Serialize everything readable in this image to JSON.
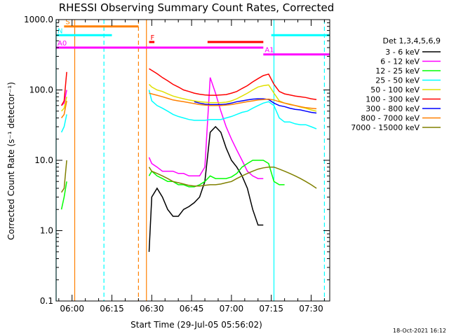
{
  "chart_data": {
    "type": "line",
    "title": "RHESSI Observing Summary Count Rates, Corrected",
    "xlabel": "Start Time (29-Jul-05 05:56:02)",
    "ylabel": "Corrected Count Rate (s⁻¹ detector⁻¹)",
    "yscale": "log",
    "ylim": [
      0.1,
      1000
    ],
    "xlim_min": [
      -6,
      97
    ],
    "x_ticks": [
      {
        "min": 0,
        "label": "06:00"
      },
      {
        "min": 15,
        "label": "06:15"
      },
      {
        "min": 30,
        "label": "06:30"
      },
      {
        "min": 45,
        "label": "06:45"
      },
      {
        "min": 60,
        "label": "07:00"
      },
      {
        "min": 75,
        "label": "07:15"
      },
      {
        "min": 90,
        "label": "07:30"
      }
    ],
    "y_ticks": [
      {
        "v": 0.1,
        "label": "0.1"
      },
      {
        "v": 1,
        "label": "1.0"
      },
      {
        "v": 10,
        "label": "10.0"
      },
      {
        "v": 100,
        "label": "100.0"
      },
      {
        "v": 1000,
        "label": "1000.0"
      }
    ],
    "legend_title": "Det 1,3,4,5,6,9",
    "series": [
      {
        "name": "3 - 6 keV",
        "color": "#000000",
        "points": [
          [
            29,
            0.5
          ],
          [
            30,
            3
          ],
          [
            32,
            4
          ],
          [
            34,
            3
          ],
          [
            36,
            2
          ],
          [
            38,
            1.6
          ],
          [
            40,
            1.6
          ],
          [
            42,
            2
          ],
          [
            44,
            2.2
          ],
          [
            46,
            2.5
          ],
          [
            48,
            3
          ],
          [
            50,
            5
          ],
          [
            52,
            25
          ],
          [
            54,
            30
          ],
          [
            56,
            25
          ],
          [
            58,
            15
          ],
          [
            60,
            10
          ],
          [
            62,
            8
          ],
          [
            64,
            6
          ],
          [
            66,
            4
          ],
          [
            68,
            2
          ],
          [
            70,
            1.2
          ],
          [
            72,
            1.2
          ]
        ]
      },
      {
        "name": "6 - 12 keV",
        "color": "#ff00ff",
        "points": [
          [
            -4,
            60
          ],
          [
            -3,
            65
          ],
          [
            -2,
            100
          ],
          [
            29,
            11
          ],
          [
            30,
            9
          ],
          [
            32,
            8
          ],
          [
            34,
            7
          ],
          [
            36,
            7
          ],
          [
            38,
            7
          ],
          [
            40,
            6.5
          ],
          [
            42,
            6.5
          ],
          [
            44,
            6
          ],
          [
            46,
            6
          ],
          [
            48,
            6
          ],
          [
            50,
            8
          ],
          [
            52,
            150
          ],
          [
            54,
            90
          ],
          [
            56,
            50
          ],
          [
            58,
            30
          ],
          [
            60,
            20
          ],
          [
            62,
            14
          ],
          [
            64,
            10
          ],
          [
            66,
            7
          ],
          [
            68,
            6
          ],
          [
            70,
            5.5
          ],
          [
            72,
            5.5
          ]
        ]
      },
      {
        "name": "12 - 25 keV",
        "color": "#00ff00",
        "points": [
          [
            -4,
            2
          ],
          [
            -3,
            3
          ],
          [
            -2,
            5
          ],
          [
            29,
            6
          ],
          [
            30,
            7
          ],
          [
            32,
            6
          ],
          [
            34,
            5.5
          ],
          [
            36,
            5
          ],
          [
            38,
            5
          ],
          [
            40,
            4.5
          ],
          [
            42,
            4.5
          ],
          [
            44,
            4.2
          ],
          [
            46,
            4.2
          ],
          [
            48,
            4.5
          ],
          [
            50,
            5
          ],
          [
            52,
            6
          ],
          [
            54,
            5.5
          ],
          [
            56,
            5.5
          ],
          [
            58,
            5.5
          ],
          [
            60,
            5.8
          ],
          [
            62,
            6.5
          ],
          [
            64,
            8
          ],
          [
            66,
            9
          ],
          [
            68,
            10
          ],
          [
            70,
            10
          ],
          [
            72,
            10
          ],
          [
            74,
            9
          ],
          [
            76,
            5
          ],
          [
            78,
            4.5
          ],
          [
            80,
            4.5
          ]
        ]
      },
      {
        "name": "25 - 50 keV",
        "color": "#00ffff",
        "points": [
          [
            -4,
            25
          ],
          [
            -3,
            30
          ],
          [
            -2,
            45
          ],
          [
            29,
            100
          ],
          [
            30,
            70
          ],
          [
            32,
            60
          ],
          [
            34,
            55
          ],
          [
            36,
            50
          ],
          [
            38,
            45
          ],
          [
            40,
            42
          ],
          [
            42,
            40
          ],
          [
            44,
            38
          ],
          [
            46,
            37
          ],
          [
            48,
            37
          ],
          [
            50,
            37
          ],
          [
            52,
            38
          ],
          [
            54,
            38
          ],
          [
            56,
            38
          ],
          [
            58,
            40
          ],
          [
            60,
            42
          ],
          [
            62,
            45
          ],
          [
            64,
            48
          ],
          [
            66,
            50
          ],
          [
            68,
            55
          ],
          [
            70,
            60
          ],
          [
            72,
            65
          ],
          [
            74,
            68
          ],
          [
            76,
            60
          ],
          [
            78,
            40
          ],
          [
            80,
            35
          ],
          [
            82,
            35
          ],
          [
            84,
            33
          ],
          [
            86,
            32
          ],
          [
            88,
            32
          ],
          [
            90,
            30
          ],
          [
            92,
            28
          ]
        ]
      },
      {
        "name": "50 - 100 keV",
        "color": "#e0e000",
        "points": [
          [
            -4,
            50
          ],
          [
            -3,
            55
          ],
          [
            -2,
            80
          ],
          [
            29,
            120
          ],
          [
            30,
            110
          ],
          [
            32,
            100
          ],
          [
            34,
            95
          ],
          [
            36,
            88
          ],
          [
            38,
            82
          ],
          [
            40,
            78
          ],
          [
            42,
            75
          ],
          [
            44,
            72
          ],
          [
            46,
            70
          ],
          [
            48,
            68
          ],
          [
            50,
            67
          ],
          [
            52,
            66
          ],
          [
            54,
            66
          ],
          [
            56,
            66
          ],
          [
            58,
            67
          ],
          [
            60,
            70
          ],
          [
            62,
            75
          ],
          [
            64,
            82
          ],
          [
            66,
            90
          ],
          [
            68,
            100
          ],
          [
            70,
            110
          ],
          [
            72,
            115
          ],
          [
            74,
            118
          ],
          [
            76,
            90
          ],
          [
            78,
            70
          ],
          [
            80,
            65
          ],
          [
            82,
            63
          ],
          [
            84,
            60
          ],
          [
            86,
            57
          ],
          [
            88,
            55
          ],
          [
            90,
            52
          ],
          [
            92,
            50
          ]
        ]
      },
      {
        "name": "100 - 300 keV",
        "color": "#ff0000",
        "points": [
          [
            -4,
            60
          ],
          [
            -3,
            70
          ],
          [
            -2,
            180
          ],
          [
            29,
            200
          ],
          [
            30,
            190
          ],
          [
            32,
            170
          ],
          [
            34,
            150
          ],
          [
            36,
            135
          ],
          [
            38,
            120
          ],
          [
            40,
            110
          ],
          [
            42,
            100
          ],
          [
            44,
            95
          ],
          [
            46,
            90
          ],
          [
            48,
            87
          ],
          [
            50,
            85
          ],
          [
            52,
            84
          ],
          [
            54,
            84
          ],
          [
            56,
            85
          ],
          [
            58,
            86
          ],
          [
            60,
            90
          ],
          [
            62,
            95
          ],
          [
            64,
            105
          ],
          [
            66,
            115
          ],
          [
            68,
            130
          ],
          [
            70,
            145
          ],
          [
            72,
            160
          ],
          [
            74,
            168
          ],
          [
            76,
            120
          ],
          [
            78,
            95
          ],
          [
            80,
            88
          ],
          [
            82,
            85
          ],
          [
            84,
            82
          ],
          [
            86,
            80
          ],
          [
            88,
            78
          ],
          [
            90,
            75
          ],
          [
            92,
            73
          ]
        ]
      },
      {
        "name": "300 - 800 keV",
        "color": "#0000ff",
        "points": [
          [
            46,
            68
          ],
          [
            48,
            65
          ],
          [
            50,
            63
          ],
          [
            52,
            62
          ],
          [
            54,
            62
          ],
          [
            56,
            62
          ],
          [
            58,
            63
          ],
          [
            60,
            65
          ],
          [
            62,
            68
          ],
          [
            64,
            70
          ],
          [
            66,
            72
          ],
          [
            68,
            74
          ],
          [
            70,
            75
          ],
          [
            72,
            75
          ],
          [
            74,
            73
          ],
          [
            76,
            65
          ],
          [
            78,
            60
          ],
          [
            80,
            58
          ],
          [
            82,
            55
          ],
          [
            84,
            53
          ],
          [
            86,
            52
          ],
          [
            88,
            50
          ],
          [
            90,
            48
          ],
          [
            92,
            47
          ]
        ]
      },
      {
        "name": "800 - 7000 keV",
        "color": "#ff8000",
        "points": [
          [
            -4,
            40
          ],
          [
            -3,
            45
          ],
          [
            -2,
            70
          ],
          [
            29,
            90
          ],
          [
            30,
            88
          ],
          [
            32,
            84
          ],
          [
            34,
            80
          ],
          [
            36,
            76
          ],
          [
            38,
            72
          ],
          [
            40,
            70
          ],
          [
            42,
            68
          ],
          [
            44,
            66
          ],
          [
            46,
            64
          ],
          [
            48,
            62
          ],
          [
            50,
            61
          ],
          [
            52,
            60
          ],
          [
            54,
            60
          ],
          [
            56,
            60
          ],
          [
            58,
            61
          ],
          [
            60,
            62
          ],
          [
            62,
            64
          ],
          [
            64,
            66
          ],
          [
            66,
            68
          ],
          [
            68,
            70
          ],
          [
            70,
            72
          ],
          [
            72,
            73
          ],
          [
            74,
            74
          ],
          [
            76,
            72
          ],
          [
            78,
            68
          ],
          [
            80,
            65
          ],
          [
            82,
            62
          ],
          [
            84,
            60
          ],
          [
            86,
            58
          ],
          [
            88,
            56
          ],
          [
            90,
            55
          ],
          [
            92,
            54
          ]
        ]
      },
      {
        "name": "7000 - 15000 keV",
        "color": "#808000",
        "points": [
          [
            -4,
            3.5
          ],
          [
            -3,
            4
          ],
          [
            -2,
            10
          ],
          [
            29,
            8
          ],
          [
            30,
            7
          ],
          [
            32,
            6.5
          ],
          [
            34,
            6
          ],
          [
            36,
            5.5
          ],
          [
            38,
            5
          ],
          [
            40,
            4.8
          ],
          [
            42,
            4.6
          ],
          [
            44,
            4.4
          ],
          [
            46,
            4.3
          ],
          [
            48,
            4.3
          ],
          [
            50,
            4.4
          ],
          [
            52,
            4.5
          ],
          [
            54,
            4.5
          ],
          [
            56,
            4.6
          ],
          [
            58,
            4.8
          ],
          [
            60,
            5
          ],
          [
            62,
            5.5
          ],
          [
            64,
            6
          ],
          [
            66,
            6.5
          ],
          [
            68,
            7
          ],
          [
            70,
            7.5
          ],
          [
            72,
            7.8
          ],
          [
            74,
            8
          ],
          [
            76,
            8
          ],
          [
            78,
            7.5
          ],
          [
            80,
            7
          ],
          [
            82,
            6.5
          ],
          [
            84,
            6
          ],
          [
            86,
            5.5
          ],
          [
            88,
            5
          ],
          [
            90,
            4.5
          ],
          [
            92,
            4
          ]
        ]
      }
    ],
    "bars": [
      {
        "label": "S",
        "color": "#ff8000",
        "x0": -3,
        "x1": 25,
        "y": 800
      },
      {
        "label": "N",
        "color": "#00ffff",
        "x0": -6,
        "x1": 15,
        "y": 600
      },
      {
        "label": "F",
        "color": "#ff0000",
        "x0": 29,
        "x1": 31,
        "y": 480
      },
      {
        "label": "",
        "color": "#ff0000",
        "x0": 51,
        "x1": 72,
        "y": 480
      },
      {
        "label": "A0",
        "color": "#ff00ff",
        "x0": -6,
        "x1": 72,
        "y": 400
      },
      {
        "label": "A1",
        "color": "#ff00ff",
        "x0": 72,
        "x1": 97,
        "y": 320
      },
      {
        "label": "",
        "color": "#00ffff",
        "x0": 75,
        "x1": 97,
        "y": 600
      }
    ],
    "vlines": [
      {
        "x": -6,
        "color": "#00ffff",
        "dash": false
      },
      {
        "x": 1,
        "color": "#ff8000",
        "dash": false
      },
      {
        "x": 12,
        "color": "#00ffff",
        "dash": true
      },
      {
        "x": 25,
        "color": "#ff8000",
        "dash": true
      },
      {
        "x": 28,
        "color": "#ff8000",
        "dash": false
      },
      {
        "x": 76,
        "color": "#00ffff",
        "dash": false
      },
      {
        "x": 95,
        "color": "#00ffff",
        "dash": true
      }
    ],
    "footer": "18-Oct-2021 16:12"
  }
}
